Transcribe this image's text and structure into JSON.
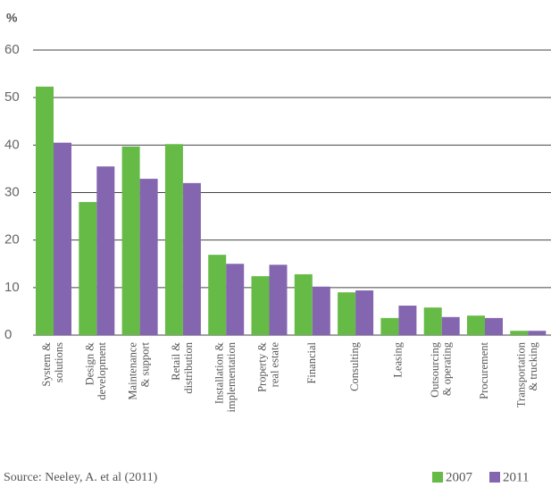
{
  "chart_data": {
    "type": "bar",
    "y_axis_label": "%",
    "categories": [
      "System &\nsolutions",
      "Design &\ndevelopment",
      "Maintenance\n& support",
      "Retail &\ndistribution",
      "Installation &\nimplementation",
      "Property &\nreal estate",
      "Financial",
      "Consulting",
      "Leasing",
      "Outsourcing\n& operating",
      "Procurement",
      "Transportation\n& trucking"
    ],
    "series": [
      {
        "name": "2007",
        "color": "#66bb46",
        "values": [
          52.3,
          28,
          39.7,
          40.2,
          16.9,
          12.4,
          12.8,
          9,
          3.6,
          5.8,
          4.1,
          0.9
        ]
      },
      {
        "name": "2011",
        "color": "#8466b0",
        "values": [
          40.5,
          35.5,
          32.9,
          32,
          15,
          14.8,
          10.2,
          9.4,
          6.2,
          3.8,
          3.6,
          0.9
        ]
      }
    ],
    "ylim": [
      0,
      60
    ],
    "yticks": [
      0,
      10,
      20,
      30,
      40,
      50,
      60
    ],
    "grid": true,
    "source": "Source: Neeley, A. et al (2011)"
  }
}
